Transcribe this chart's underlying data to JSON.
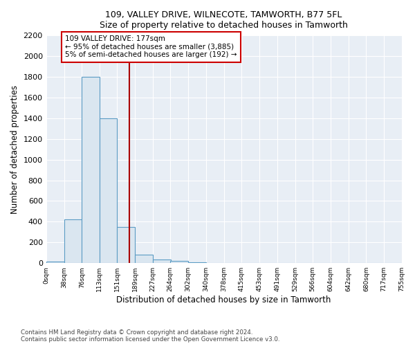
{
  "title1": "109, VALLEY DRIVE, WILNECOTE, TAMWORTH, B77 5FL",
  "title2": "Size of property relative to detached houses in Tamworth",
  "xlabel": "Distribution of detached houses by size in Tamworth",
  "ylabel": "Number of detached properties",
  "footnote": "Contains HM Land Registry data © Crown copyright and database right 2024.\nContains public sector information licensed under the Open Government Licence v3.0.",
  "bin_edges": [
    0,
    38,
    76,
    113,
    151,
    189,
    227,
    264,
    302,
    340,
    378,
    415,
    453,
    491,
    529,
    566,
    604,
    642,
    680,
    717,
    755
  ],
  "bar_heights": [
    15,
    420,
    1800,
    1400,
    350,
    80,
    35,
    20,
    10,
    0,
    0,
    0,
    0,
    0,
    0,
    0,
    0,
    0,
    0,
    0
  ],
  "bar_color": "#dae6f0",
  "bar_edge_color": "#5b9cc4",
  "property_size": 177,
  "vline_color": "#aa0000",
  "annotation_line1": "109 VALLEY DRIVE: 177sqm",
  "annotation_line2": "← 95% of detached houses are smaller (3,885)",
  "annotation_line3": "5% of semi-detached houses are larger (192) →",
  "annotation_box_color": "#cc0000",
  "ylim": [
    0,
    2200
  ],
  "xlim": [
    0,
    755
  ],
  "yticks": [
    0,
    200,
    400,
    600,
    800,
    1000,
    1200,
    1400,
    1600,
    1800,
    2000,
    2200
  ],
  "bg_color": "#e8eef5",
  "grid_color": "#d0d8e4",
  "tick_labels": [
    "0sqm",
    "38sqm",
    "76sqm",
    "113sqm",
    "151sqm",
    "189sqm",
    "227sqm",
    "264sqm",
    "302sqm",
    "340sqm",
    "378sqm",
    "415sqm",
    "453sqm",
    "491sqm",
    "529sqm",
    "566sqm",
    "604sqm",
    "642sqm",
    "680sqm",
    "717sqm",
    "755sqm"
  ],
  "tick_positions": [
    0,
    38,
    76,
    113,
    151,
    189,
    227,
    264,
    302,
    340,
    378,
    415,
    453,
    491,
    529,
    566,
    604,
    642,
    680,
    717,
    755
  ],
  "title1_fontsize": 9.5,
  "title2_fontsize": 8.5
}
